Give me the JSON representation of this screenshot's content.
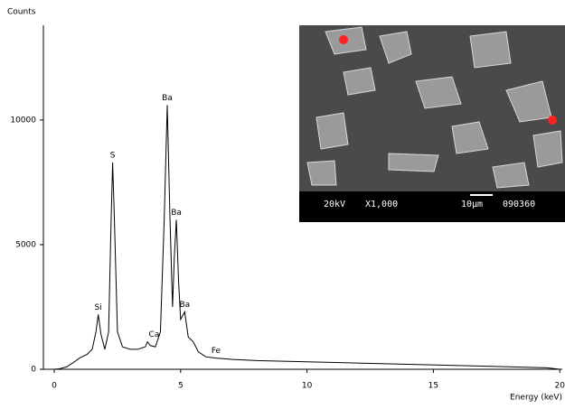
{
  "chart_data": {
    "type": "line",
    "y_label": "Counts",
    "x_label": "Energy (keV)",
    "x": [
      0,
      0.2,
      0.5,
      0.8,
      1.0,
      1.3,
      1.5,
      1.65,
      1.74,
      1.85,
      2.0,
      2.15,
      2.25,
      2.31,
      2.38,
      2.5,
      2.7,
      3.0,
      3.3,
      3.6,
      3.69,
      3.8,
      4.0,
      4.2,
      4.35,
      4.47,
      4.58,
      4.68,
      4.75,
      4.83,
      4.92,
      5.0,
      5.16,
      5.3,
      5.5,
      5.7,
      6.0,
      6.4,
      7,
      8,
      10,
      12,
      14,
      16,
      18,
      19.5,
      20
    ],
    "series": [
      {
        "color": "#000000",
        "values": [
          0,
          20,
          100,
          300,
          450,
          600,
          800,
          1500,
          2200,
          1400,
          800,
          1500,
          6000,
          8300,
          6000,
          1500,
          900,
          800,
          800,
          900,
          1100,
          950,
          900,
          1500,
          6000,
          10600,
          6000,
          2500,
          4500,
          6000,
          3500,
          2000,
          2300,
          1300,
          1100,
          700,
          500,
          450,
          400,
          350,
          300,
          250,
          200,
          150,
          100,
          60,
          0
        ]
      }
    ],
    "annotations": [
      {
        "text": "Si",
        "x": 1.74,
        "y": 2200
      },
      {
        "text": "S",
        "x": 2.31,
        "y": 8300
      },
      {
        "text": "Ca",
        "x": 3.95,
        "y": 1100
      },
      {
        "text": "Ba",
        "x": 4.47,
        "y": 10600
      },
      {
        "text": "Ba",
        "x": 4.83,
        "y": 6000
      },
      {
        "text": "Ba",
        "x": 5.16,
        "y": 2300
      },
      {
        "text": "Fe",
        "x": 6.4,
        "y": 450
      }
    ],
    "xlim": [
      -0.43,
      20.1
    ],
    "ylim": [
      0,
      13800
    ],
    "xticks": [
      0,
      5,
      10,
      15,
      20
    ],
    "yticks": [
      0,
      5000,
      10000
    ],
    "grid": false,
    "inset_labels": [
      "20kV",
      "X1,000",
      "10µm",
      "090360"
    ]
  }
}
